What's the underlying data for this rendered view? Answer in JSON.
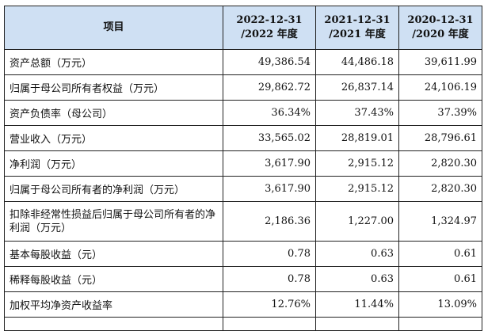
{
  "table": {
    "header": {
      "item": "项目",
      "columns": [
        {
          "line1": "2022-12-31",
          "line2": "/2022 年度"
        },
        {
          "line1": "2021-12-31",
          "line2": "/2021 年度"
        },
        {
          "line1": "2020-12-31",
          "line2": "/2020 年度"
        }
      ]
    },
    "rows": [
      {
        "label": "资产总额（万元）",
        "values": [
          "49,386.54",
          "44,486.18",
          "39,611.99"
        ]
      },
      {
        "label": "归属于母公司所有者权益（万元）",
        "values": [
          "29,862.72",
          "26,837.14",
          "24,106.19"
        ]
      },
      {
        "label": "资产负债率（母公司）",
        "values": [
          "36.34%",
          "37.43%",
          "37.39%"
        ]
      },
      {
        "label": "营业收入（万元）",
        "values": [
          "33,565.02",
          "28,819.01",
          "28,796.61"
        ]
      },
      {
        "label": "净利润（万元）",
        "values": [
          "3,617.90",
          "2,915.12",
          "2,820.30"
        ]
      },
      {
        "label": "归属于母公司所有者的净利润（万元）",
        "values": [
          "3,617.90",
          "2,915.12",
          "2,820.30"
        ]
      },
      {
        "label": "扣除非经常性损益后归属于母公司所有者的净利润（万元）",
        "values": [
          "2,186.36",
          "1,227.00",
          "1,324.97"
        ]
      },
      {
        "label": "基本每股收益（元）",
        "values": [
          "0.78",
          "0.63",
          "0.61"
        ]
      },
      {
        "label": "稀释每股收益（元）",
        "values": [
          "0.78",
          "0.63",
          "0.61"
        ]
      },
      {
        "label": "加权平均净资产收益率",
        "values": [
          "12.76%",
          "11.44%",
          "13.09%"
        ]
      }
    ]
  }
}
